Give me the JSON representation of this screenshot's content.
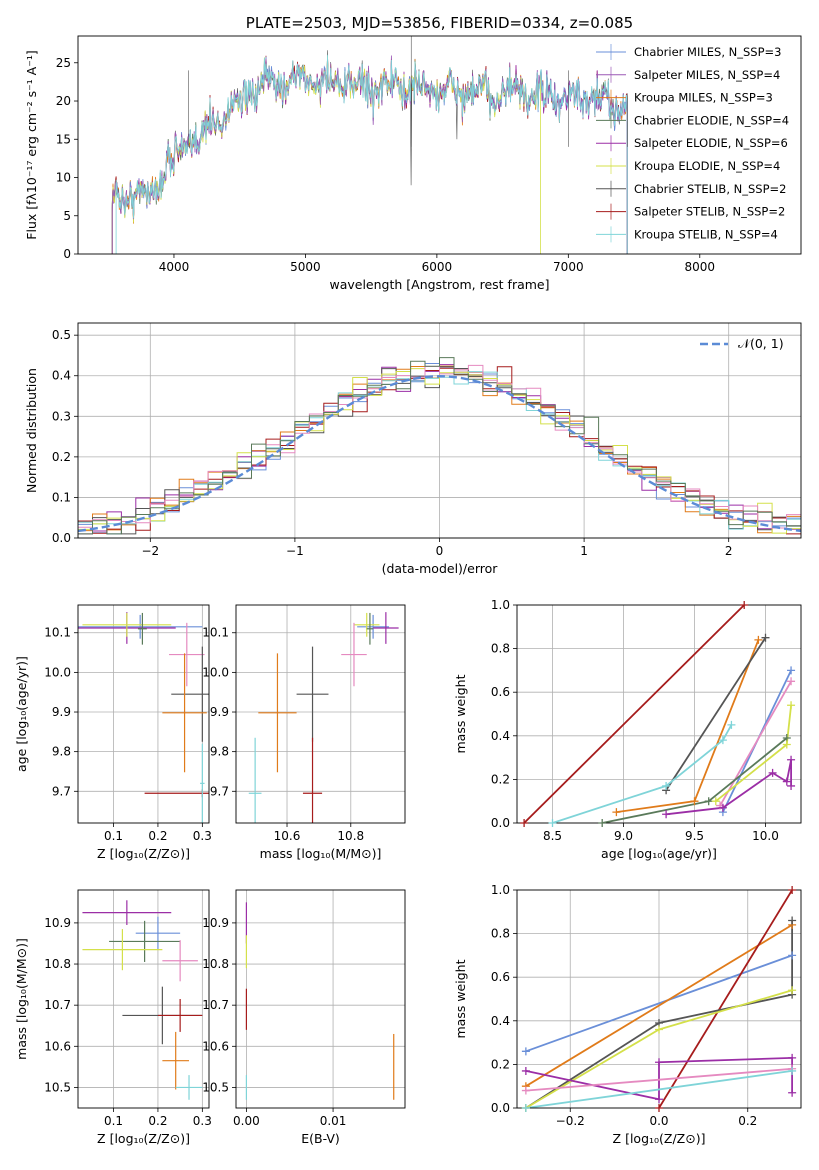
{
  "colors": {
    "chabrier_miles": "#6a8fd8",
    "salpeter_miles": "#9b59b6",
    "kroupa_miles": "#e07b1a",
    "chabrier_elodie": "#5a7a5a",
    "salpeter_elodie": "#9b2ea6",
    "kroupa_elodie": "#d4e04a",
    "chabrier_stelib": "#555555",
    "salpeter_stelib": "#a61c1c",
    "kroupa_stelib": "#7fd4d8",
    "pink": "#e58ac0",
    "lime": "#c4e84a",
    "normal": "#5b8bd6"
  },
  "chart_data": [
    {
      "id": "spectrum",
      "type": "line",
      "title": "PLATE=2503, MJD=53856, FIBERID=0334, z=0.085",
      "xlabel": "wavelength [Angstrom, rest frame]",
      "ylabel": "Flux [fλ10⁻¹⁷ erg cm⁻² s⁻¹ A⁻¹]",
      "xlim": [
        3270,
        8770
      ],
      "ylim": [
        0,
        28.5
      ],
      "xticks": [
        "4000",
        "5000",
        "6000",
        "7000",
        "8000"
      ],
      "xtick_values": [
        4000,
        5000,
        6000,
        7000,
        8000
      ],
      "yticks": [
        "0",
        "5",
        "10",
        "15",
        "20",
        "25"
      ],
      "ytick_values": [
        0,
        5,
        10,
        15,
        20,
        25
      ],
      "grid": false,
      "legend": "top-right",
      "legend_entries": [
        "Chabrier MILES, N_SSP=3",
        "Salpeter MILES, N_SSP=4",
        "Kroupa MILES, N_SSP=3",
        "Chabrier ELODIE, N_SSP=4",
        "Salpeter ELODIE, N_SSP=6",
        "Kroupa ELODIE, N_SSP=4",
        "Chabrier STELIB, N_SSP=2",
        "Salpeter STELIB, N_SSP=2",
        "Kroupa STELIB, N_SSP=4"
      ],
      "continuum": [
        [
          3530,
          7
        ],
        [
          3700,
          8
        ],
        [
          3850,
          8
        ],
        [
          3950,
          12
        ],
        [
          4100,
          14
        ],
        [
          4300,
          17
        ],
        [
          4500,
          20
        ],
        [
          4700,
          22
        ],
        [
          4900,
          23
        ],
        [
          5100,
          22.5
        ],
        [
          5400,
          22
        ],
        [
          5700,
          22
        ],
        [
          6000,
          21.5
        ],
        [
          6300,
          21
        ],
        [
          6600,
          21
        ],
        [
          6900,
          20.5
        ],
        [
          7200,
          20
        ],
        [
          7450,
          19.5
        ]
      ]
    },
    {
      "id": "residuals",
      "type": "bar",
      "xlabel": "(data-model)/error",
      "ylabel": "Normed distribution",
      "xlim": [
        -2.5,
        2.5
      ],
      "ylim": [
        0,
        0.53
      ],
      "xticks": [
        "−2",
        "−1",
        "0",
        "1",
        "2"
      ],
      "xtick_values": [
        -2,
        -1,
        0,
        1,
        2
      ],
      "yticks": [
        "0.0",
        "0.1",
        "0.2",
        "0.3",
        "0.4",
        "0.5"
      ],
      "ytick_values": [
        0,
        0.1,
        0.2,
        0.3,
        0.4,
        0.5
      ],
      "grid": true,
      "legend": "top-right",
      "legend_label": "𝒩(0, 1)",
      "bin_width": 0.1
    },
    {
      "id": "age_vs_Z",
      "type": "scatter",
      "xlabel": "Z [log₁₀(Z/Z⊙)]",
      "ylabel": "age  [log₁₀(age/yr)]",
      "xlim": [
        0.02,
        0.315
      ],
      "ylim": [
        9.62,
        10.17
      ],
      "xticks": [
        "0.1",
        "0.2",
        "0.3"
      ],
      "xtick_values": [
        0.1,
        0.2,
        0.3
      ],
      "yticks": [
        "9.7",
        "9.8",
        "9.9",
        "10.0",
        "10.1"
      ],
      "ytick_values": [
        9.7,
        9.8,
        9.9,
        10.0,
        10.1
      ],
      "grid": true,
      "points": [
        {
          "color": "chabrier_miles",
          "x": 0.16,
          "xerr": 0.14,
          "y": 10.115,
          "yerr": 0.03
        },
        {
          "color": "salpeter_elodie",
          "x": 0.13,
          "xerr": 0.11,
          "y": 10.112,
          "yerr": 0.04
        },
        {
          "color": "kroupa_elodie",
          "x": 0.13,
          "xerr": 0.1,
          "y": 10.12,
          "yerr": 0.03
        },
        {
          "color": "chabrier_elodie",
          "x": 0.165,
          "xerr": 0.01,
          "y": 10.11,
          "yerr": 0.04
        },
        {
          "color": "pink",
          "x": 0.265,
          "xerr": 0.04,
          "y": 10.045,
          "yerr": 0.08
        },
        {
          "color": "chabrier_stelib",
          "x": 0.3,
          "xerr": 0.07,
          "y": 9.945,
          "yerr": 0.12
        },
        {
          "color": "kroupa_miles",
          "x": 0.26,
          "xerr": 0.05,
          "y": 9.898,
          "yerr": 0.15
        },
        {
          "color": "salpeter_stelib",
          "x": 0.3,
          "xerr": 0.13,
          "y": 9.695,
          "yerr": 0.01
        },
        {
          "color": "kroupa_stelib",
          "x": 0.3,
          "xerr": 0.005,
          "y": 9.72,
          "yerr": 0.1
        }
      ]
    },
    {
      "id": "age_vs_mass",
      "type": "scatter",
      "xlabel": "mass [log₁₀(M/M⊙)]",
      "ylabel": "",
      "xlim": [
        10.44,
        10.97
      ],
      "ylim": [
        9.62,
        10.17
      ],
      "xticks": [
        "10.6",
        "10.8"
      ],
      "xtick_values": [
        10.6,
        10.8
      ],
      "yticks": [
        "9.7",
        "9.8",
        "9.9",
        "10.0",
        "10.1"
      ],
      "ytick_values": [
        9.7,
        9.8,
        9.9,
        10.0,
        10.1
      ],
      "grid": true,
      "points": [
        {
          "color": "chabrier_miles",
          "x": 10.87,
          "xerr": 0.05,
          "y": 10.115,
          "yerr": 0.03
        },
        {
          "color": "salpeter_elodie",
          "x": 10.91,
          "xerr": 0.04,
          "y": 10.112,
          "yerr": 0.04
        },
        {
          "color": "kroupa_elodie",
          "x": 10.85,
          "xerr": 0.04,
          "y": 10.12,
          "yerr": 0.03
        },
        {
          "color": "chabrier_elodie",
          "x": 10.86,
          "xerr": 0.01,
          "y": 10.11,
          "yerr": 0.04
        },
        {
          "color": "pink",
          "x": 10.81,
          "xerr": 0.04,
          "y": 10.045,
          "yerr": 0.08
        },
        {
          "color": "chabrier_stelib",
          "x": 10.68,
          "xerr": 0.05,
          "y": 9.945,
          "yerr": 0.12
        },
        {
          "color": "kroupa_miles",
          "x": 10.57,
          "xerr": 0.06,
          "y": 9.898,
          "yerr": 0.15
        },
        {
          "color": "salpeter_stelib",
          "x": 10.68,
          "xerr": 0.03,
          "y": 9.695,
          "yerr": 0.14
        },
        {
          "color": "kroupa_stelib",
          "x": 10.5,
          "xerr": 0.02,
          "y": 9.695,
          "yerr": 0.14
        }
      ]
    },
    {
      "id": "weight_vs_age",
      "type": "line",
      "xlabel": "age  [log₁₀(age/yr)]",
      "ylabel": "mass weight",
      "xlim": [
        8.25,
        10.25
      ],
      "ylim": [
        0,
        1.0
      ],
      "xticks": [
        "8.5",
        "9.0",
        "9.5",
        "10.0"
      ],
      "xtick_values": [
        8.5,
        9.0,
        9.5,
        10.0
      ],
      "yticks": [
        "0.0",
        "0.2",
        "0.4",
        "0.6",
        "0.8",
        "1.0"
      ],
      "ytick_values": [
        0,
        0.2,
        0.4,
        0.6,
        0.8,
        1.0
      ],
      "grid": true,
      "series": [
        {
          "color": "salpeter_stelib",
          "x": [
            8.3,
            9.85
          ],
          "y": [
            0.0,
            1.0
          ]
        },
        {
          "color": "kroupa_miles",
          "x": [
            8.95,
            9.5,
            9.95
          ],
          "y": [
            0.05,
            0.1,
            0.84
          ]
        },
        {
          "color": "chabrier_stelib",
          "x": [
            9.3,
            10.0
          ],
          "y": [
            0.15,
            0.85
          ]
        },
        {
          "color": "chabrier_miles",
          "x": [
            9.7,
            10.18
          ],
          "y": [
            0.05,
            0.7
          ]
        },
        {
          "color": "pink",
          "x": [
            9.68,
            10.18
          ],
          "y": [
            0.08,
            0.65
          ]
        },
        {
          "color": "kroupa_stelib",
          "x": [
            8.5,
            9.3,
            9.7,
            9.76
          ],
          "y": [
            0.0,
            0.17,
            0.38,
            0.45
          ]
        },
        {
          "color": "salpeter_elodie",
          "x": [
            9.3,
            9.7,
            10.05,
            10.15,
            10.18,
            10.18
          ],
          "y": [
            0.04,
            0.07,
            0.23,
            0.19,
            0.29,
            0.17
          ]
        },
        {
          "color": "chabrier_elodie",
          "x": [
            8.85,
            9.6,
            10.15
          ],
          "y": [
            0.0,
            0.1,
            0.39
          ]
        },
        {
          "color": "kroupa_elodie",
          "x": [
            9.65,
            10.15,
            10.18
          ],
          "y": [
            0.1,
            0.36,
            0.54
          ]
        }
      ]
    },
    {
      "id": "mass_vs_Z",
      "type": "scatter",
      "xlabel": "Z [log₁₀(Z/Z⊙)]",
      "ylabel": "mass [log₁₀(M/M⊙)]",
      "xlim": [
        0.02,
        0.315
      ],
      "ylim": [
        10.45,
        10.98
      ],
      "xticks": [
        "0.1",
        "0.2",
        "0.3"
      ],
      "xtick_values": [
        0.1,
        0.2,
        0.3
      ],
      "yticks": [
        "10.5",
        "10.6",
        "10.7",
        "10.8",
        "10.9"
      ],
      "ytick_values": [
        10.5,
        10.6,
        10.7,
        10.8,
        10.9
      ],
      "grid": true,
      "points": [
        {
          "color": "salpeter_elodie",
          "x": 0.13,
          "xerr": 0.1,
          "y": 10.925,
          "yerr": 0.03
        },
        {
          "color": "chabrier_miles",
          "x": 0.2,
          "xerr": 0.05,
          "y": 10.875,
          "yerr": 0.04
        },
        {
          "color": "chabrier_elodie",
          "x": 0.17,
          "xerr": 0.08,
          "y": 10.855,
          "yerr": 0.05
        },
        {
          "color": "kroupa_elodie",
          "x": 0.12,
          "xerr": 0.09,
          "y": 10.835,
          "yerr": 0.05
        },
        {
          "color": "pink",
          "x": 0.25,
          "xerr": 0.04,
          "y": 10.808,
          "yerr": 0.05
        },
        {
          "color": "chabrier_stelib",
          "x": 0.21,
          "xerr": 0.09,
          "y": 10.675,
          "yerr": 0.07
        },
        {
          "color": "salpeter_stelib",
          "x": 0.25,
          "xerr": 0.05,
          "y": 10.675,
          "yerr": 0.04
        },
        {
          "color": "kroupa_miles",
          "x": 0.24,
          "xerr": 0.03,
          "y": 10.565,
          "yerr": 0.07
        },
        {
          "color": "kroupa_stelib",
          "x": 0.27,
          "xerr": 0.03,
          "y": 10.5,
          "yerr": 0.03
        }
      ]
    },
    {
      "id": "mass_vs_ebv",
      "type": "scatter",
      "xlabel": "E(B-V)",
      "ylabel": "",
      "xlim": [
        -0.0012,
        0.0183
      ],
      "ylim": [
        10.45,
        10.98
      ],
      "xticks": [
        "0.00",
        "0.01"
      ],
      "xtick_values": [
        0.0,
        0.01
      ],
      "yticks": [
        "10.5",
        "10.6",
        "10.7",
        "10.8",
        "10.9"
      ],
      "ytick_values": [
        10.5,
        10.6,
        10.7,
        10.8,
        10.9
      ],
      "grid": true,
      "points": [
        {
          "color": "salpeter_elodie",
          "x": 0.0,
          "xerr": 0.0,
          "y": 10.9,
          "yerr": 0.05
        },
        {
          "color": "kroupa_elodie",
          "x": 0.0,
          "xerr": 0.0,
          "y": 10.83,
          "yerr": 0.04
        },
        {
          "color": "salpeter_stelib",
          "x": 0.0,
          "xerr": 0.0,
          "y": 10.69,
          "yerr": 0.05
        },
        {
          "color": "kroupa_stelib",
          "x": 0.0,
          "xerr": 0.0,
          "y": 10.5,
          "yerr": 0.03
        },
        {
          "color": "kroupa_miles",
          "x": 0.017,
          "xerr": 0.0,
          "y": 10.55,
          "yerr": 0.08
        }
      ]
    },
    {
      "id": "weight_vs_Z",
      "type": "line",
      "xlabel": "Z [log₁₀(Z/Z⊙)]",
      "ylabel": "mass weight",
      "xlim": [
        -0.32,
        0.32
      ],
      "ylim": [
        0,
        1.0
      ],
      "xticks": [
        "−0.2",
        "0.0",
        "0.2"
      ],
      "xtick_values": [
        -0.2,
        0.0,
        0.2
      ],
      "yticks": [
        "0.0",
        "0.2",
        "0.4",
        "0.6",
        "0.8",
        "1.0"
      ],
      "ytick_values": [
        0,
        0.2,
        0.4,
        0.6,
        0.8,
        1.0
      ],
      "grid": true,
      "series": [
        {
          "color": "chabrier_miles",
          "x": [
            -0.3,
            0.3
          ],
          "y": [
            0.26,
            0.7
          ]
        },
        {
          "color": "kroupa_miles",
          "x": [
            -0.3,
            0.3
          ],
          "y": [
            0.1,
            0.84
          ]
        },
        {
          "color": "salpeter_stelib",
          "x": [
            0.0,
            0.3
          ],
          "y": [
            0.0,
            1.0
          ]
        },
        {
          "color": "chabrier_stelib",
          "x": [
            -0.3,
            0.0,
            0.3,
            0.3
          ],
          "y": [
            0.0,
            0.39,
            0.52,
            0.86
          ]
        },
        {
          "color": "kroupa_elodie",
          "x": [
            -0.3,
            0.0,
            0.3
          ],
          "y": [
            0.0,
            0.36,
            0.54
          ]
        },
        {
          "color": "salpeter_elodie",
          "x": [
            -0.3,
            0.0,
            0.0,
            0.3,
            0.3
          ],
          "y": [
            0.17,
            0.04,
            0.21,
            0.23,
            0.07
          ]
        },
        {
          "color": "pink",
          "x": [
            -0.3,
            0.3
          ],
          "y": [
            0.08,
            0.18
          ]
        },
        {
          "color": "kroupa_stelib",
          "x": [
            -0.3,
            0.3
          ],
          "y": [
            0.0,
            0.17
          ]
        }
      ]
    }
  ]
}
